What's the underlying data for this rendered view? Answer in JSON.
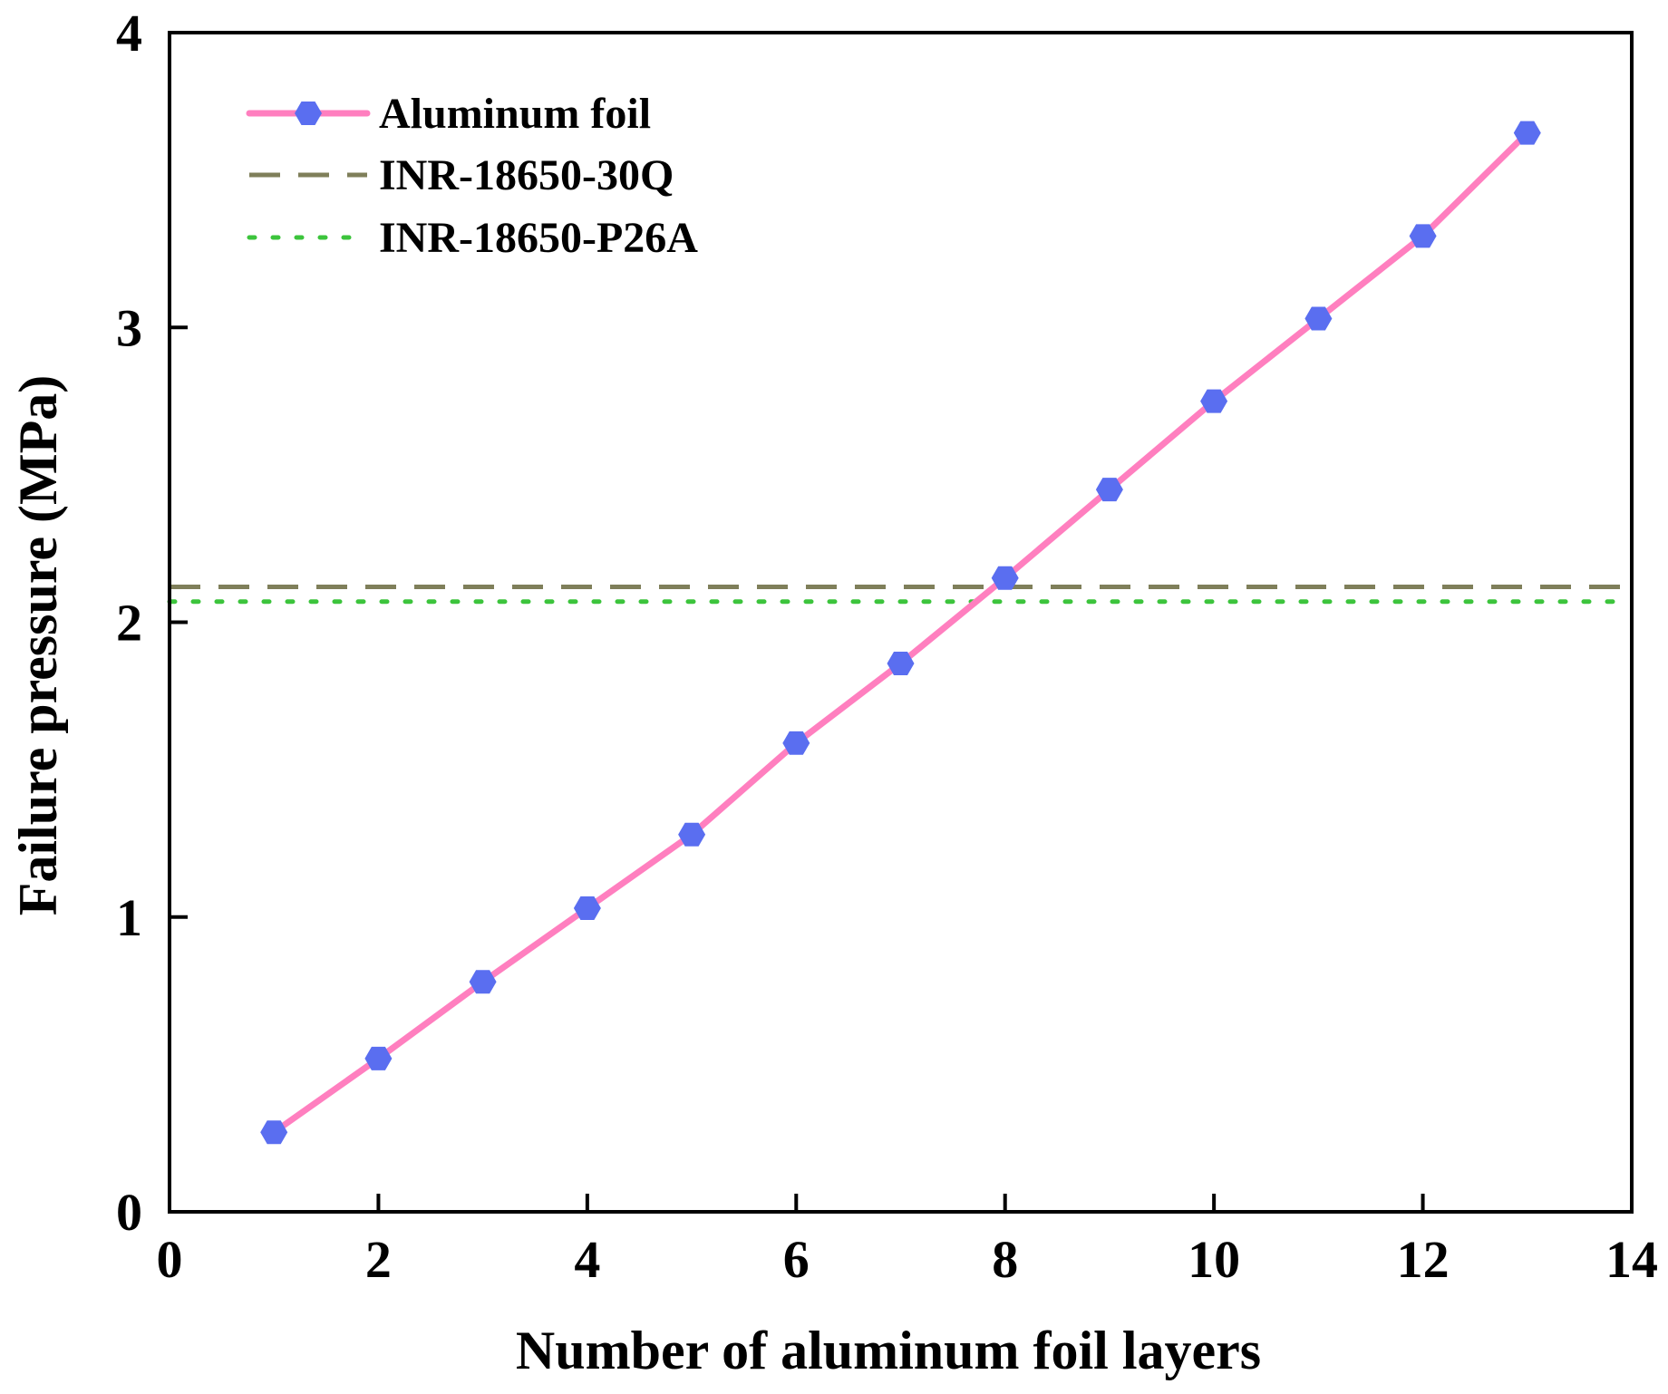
{
  "chart_data": {
    "type": "line",
    "xlabel": "Number of aluminum foil layers",
    "ylabel": "Failure pressure (MPa)",
    "xlim": [
      0,
      14
    ],
    "ylim": [
      0,
      4
    ],
    "xticks": [
      0,
      2,
      4,
      6,
      8,
      10,
      12,
      14
    ],
    "yticks": [
      0,
      1,
      2,
      3,
      4
    ],
    "legend_position": "top-left",
    "series": [
      {
        "name": "Aluminum foil",
        "style": "solid-line-hexagon-markers",
        "line_color": "#ff7fbf",
        "marker_color": "#5a6ef0",
        "x": [
          1,
          2,
          3,
          4,
          5,
          6,
          7,
          8,
          9,
          10,
          11,
          12,
          13
        ],
        "values": [
          0.27,
          0.52,
          0.78,
          1.03,
          1.28,
          1.59,
          1.86,
          2.15,
          2.45,
          2.75,
          3.03,
          3.31,
          3.66
        ]
      },
      {
        "name": "INR-18650-30Q",
        "style": "dashed",
        "line_color": "#7f7f5a",
        "value": 2.12
      },
      {
        "name": "INR-18650-P26A",
        "style": "dotted",
        "line_color": "#3cc43c",
        "value": 2.07
      }
    ]
  }
}
